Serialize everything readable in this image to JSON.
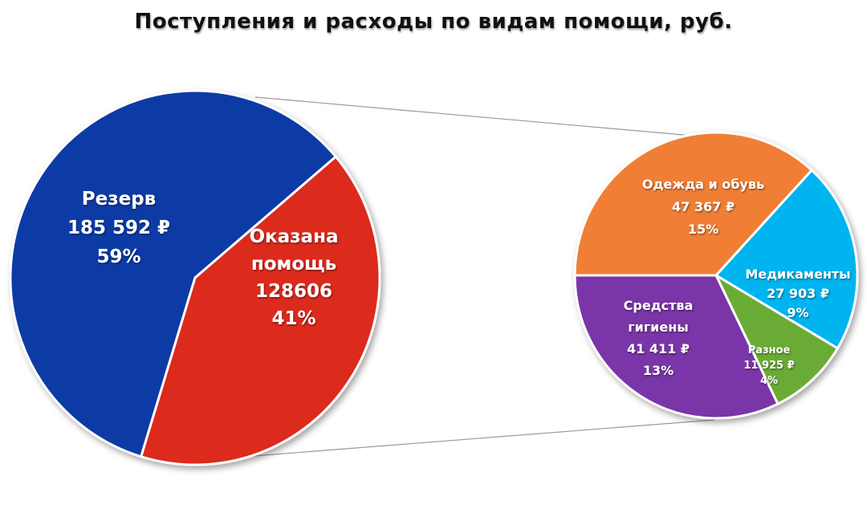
{
  "title": "Поступления и расходы по видам помощи, руб.",
  "chart_data": [
    {
      "type": "pie",
      "title": "Поступления и расходы по видам помощи, руб.",
      "slices": [
        {
          "label_lines": [
            "Резерв",
            "185 592 ₽",
            "59%"
          ],
          "value": 185592,
          "percent_label": "59%",
          "color": "#0a3aa6"
        },
        {
          "label_lines": [
            "Оказана",
            "помощь",
            "128606",
            "41%"
          ],
          "value": 128606,
          "percent_label": "41%",
          "color": "#dc2b1b"
        }
      ]
    },
    {
      "type": "pie",
      "breakdown_of": "Оказана помощь",
      "slices": [
        {
          "label_lines": [
            "Одежда и обувь",
            "47 367 ₽",
            "15%"
          ],
          "value": 47367,
          "percent_label": "15%",
          "color": "#f07f35"
        },
        {
          "label_lines": [
            "Медикаменты",
            "27 903 ₽",
            "9%"
          ],
          "value": 27903,
          "percent_label": "9%",
          "color": "#06b4f0"
        },
        {
          "label_lines": [
            "Разное",
            "11 925 ₽",
            "4%"
          ],
          "value": 11925,
          "percent_label": "4%",
          "color": "#6aab35"
        },
        {
          "label_lines": [
            "Средства",
            "гигиены",
            "41 411 ₽",
            "13%"
          ],
          "value": 41411,
          "percent_label": "13%",
          "color": "#7a35a8"
        }
      ]
    }
  ]
}
